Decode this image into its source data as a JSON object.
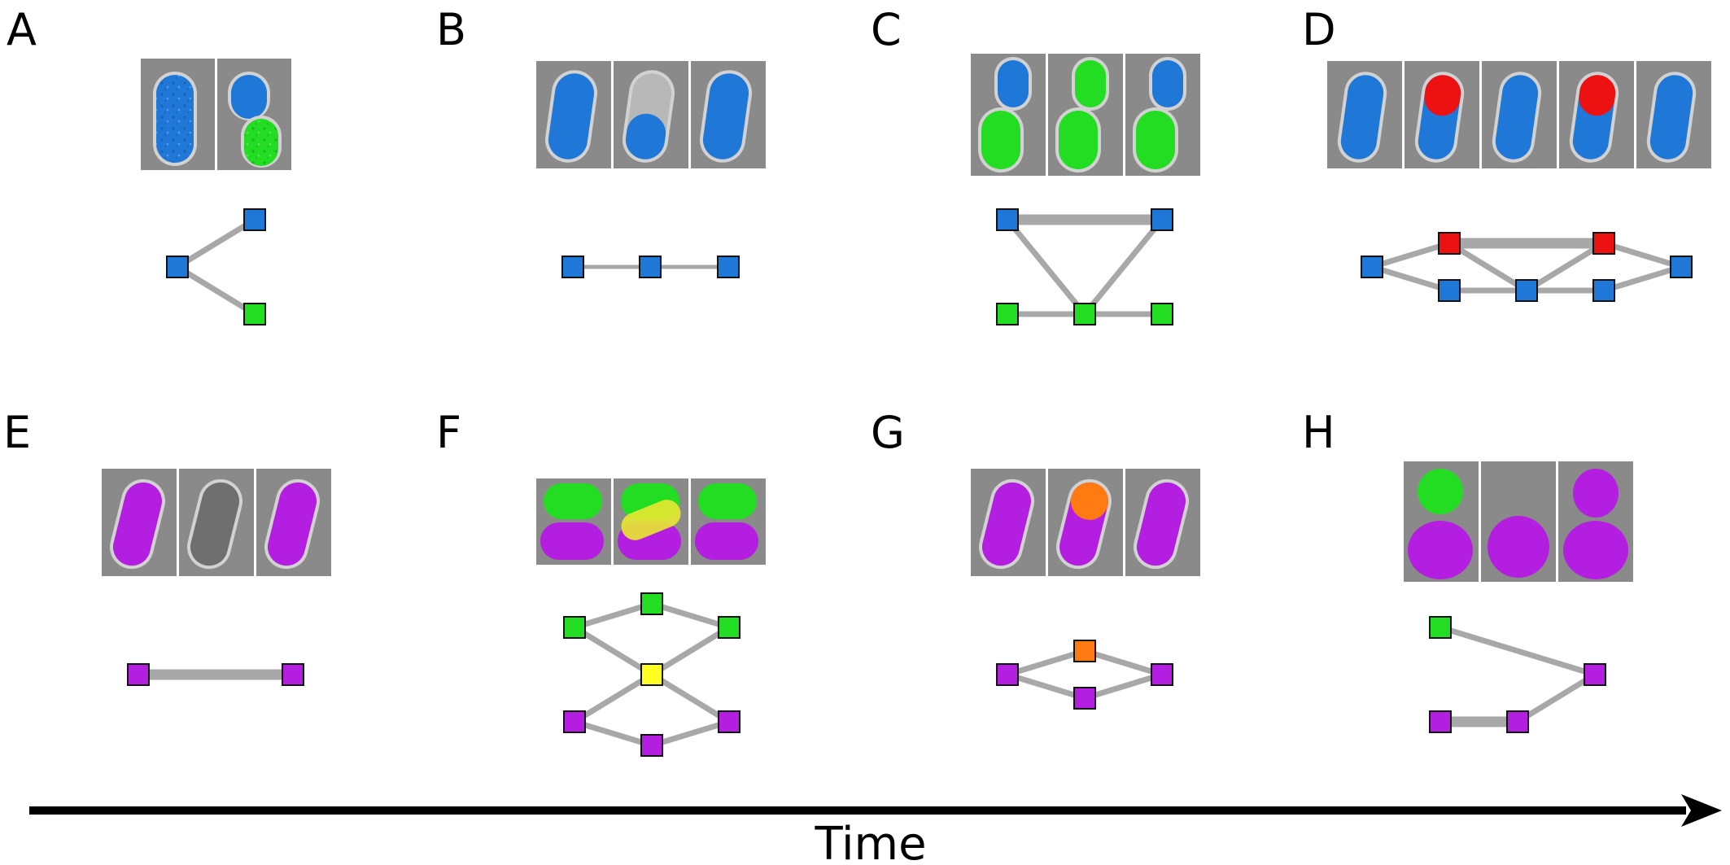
{
  "panel_labels": [
    "A",
    "B",
    "C",
    "D",
    "E",
    "F",
    "G",
    "H"
  ],
  "time_label": "Time",
  "colors": {
    "blue": "#1f78d8",
    "green": "#22dd22",
    "red": "#ee1111",
    "magenta": "#b41ee0",
    "yellow": "#ffff22",
    "orange": "#ff7a10",
    "edge": "#a8a8a8",
    "frame": "#8a8a8a",
    "arrow": "#000000"
  }
}
